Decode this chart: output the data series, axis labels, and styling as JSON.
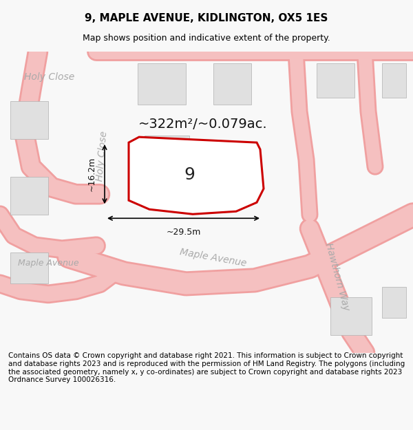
{
  "title": "9, MAPLE AVENUE, KIDLINGTON, OX5 1ES",
  "subtitle": "Map shows position and indicative extent of the property.",
  "footer": "Contains OS data © Crown copyright and database right 2021. This information is subject to Crown copyright and database rights 2023 and is reproduced with the permission of HM Land Registry. The polygons (including the associated geometry, namely x, y co-ordinates) are subject to Crown copyright and database rights 2023 Ordnance Survey 100026316.",
  "area_label": "~322m²/~0.079ac.",
  "plot_number": "9",
  "dim_width": "~29.5m",
  "dim_height": "~16.2m",
  "street_labels": [
    "Holy Close",
    "Maple Avenue",
    "Hawthorn Way",
    "Maple Avenue"
  ],
  "bg_color": "#f8f8f8",
  "map_bg": "#ffffff",
  "road_color": "#f5c0c0",
  "road_outline": "#f0a0a0",
  "building_color": "#e0e0e0",
  "plot_fill": "#ffffff",
  "plot_edge": "#cc0000",
  "dim_line_color": "#000000",
  "title_fontsize": 11,
  "subtitle_fontsize": 9,
  "footer_fontsize": 7.5,
  "label_fontsize": 9,
  "plot_label_fontsize": 18,
  "area_fontsize": 14,
  "street_fontsize": 10
}
